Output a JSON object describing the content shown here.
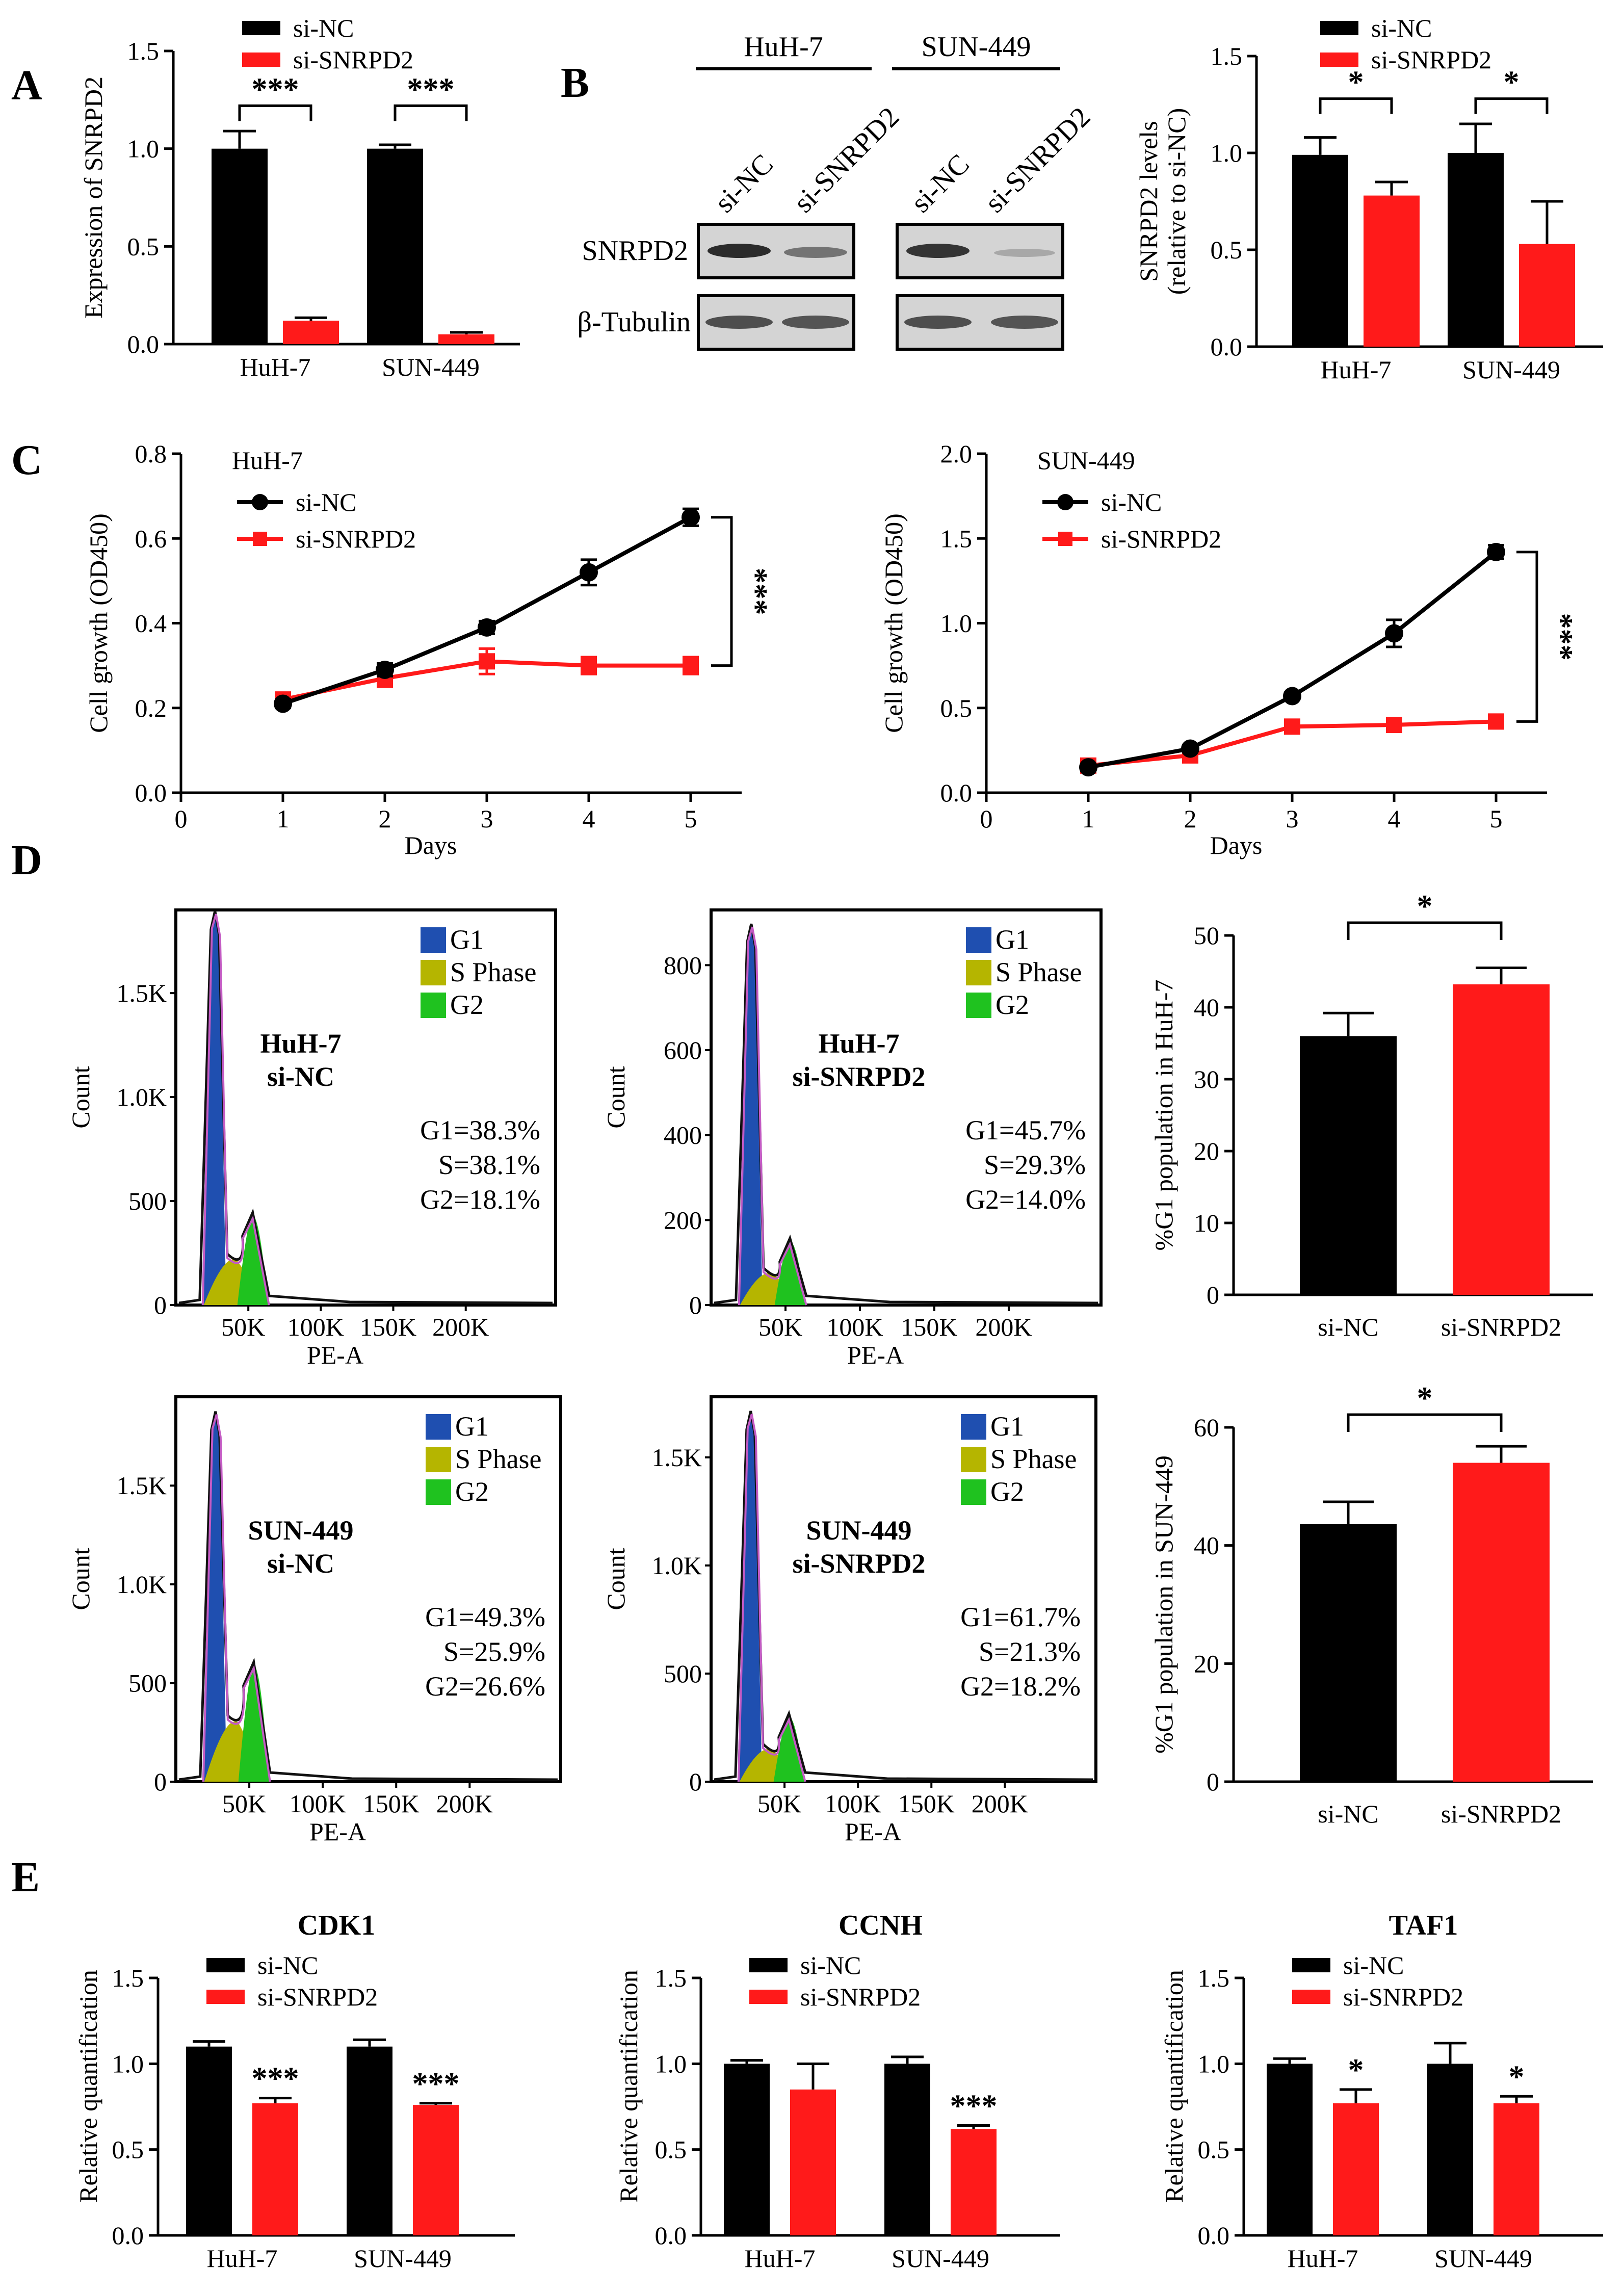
{
  "colors": {
    "nc": "#000000",
    "kd": "#ff1a1a",
    "g1": "#1f4fb0",
    "s": "#b5b500",
    "g2": "#1fc21f",
    "outline": "#c45bc4"
  },
  "panel_labels": {
    "A": "A",
    "B": "B",
    "C": "C",
    "D": "D",
    "E": "E"
  },
  "legend": {
    "nc": "si-NC",
    "kd": "si-SNRPD2"
  },
  "blot": {
    "cell_lines": [
      "HuH-7",
      "SUN-449"
    ],
    "lanes": [
      "si-NC",
      "si-SNRPD2"
    ],
    "rows": [
      "SNRPD2",
      "β-Tubulin"
    ]
  },
  "cell_cycle_legend": {
    "g1": "G1",
    "s": "S Phase",
    "g2": "G2"
  },
  "chart_data": [
    {
      "id": "A",
      "type": "bar",
      "categories": [
        "HuH-7",
        "SUN-449"
      ],
      "series": [
        {
          "name": "si-NC",
          "values": [
            1.0,
            1.0
          ],
          "errors": [
            0.09,
            0.02
          ]
        },
        {
          "name": "si-SNRPD2",
          "values": [
            0.12,
            0.05
          ],
          "errors": [
            0.015,
            0.01
          ]
        }
      ],
      "ylabel": "Expression of SNRPD2",
      "ylim": [
        0,
        1.5
      ],
      "yticks": [
        "0.0",
        "0.5",
        "1.0",
        "1.5"
      ],
      "annotations": [
        "***",
        "***"
      ]
    },
    {
      "id": "B",
      "type": "bar",
      "categories": [
        "HuH-7",
        "SUN-449"
      ],
      "series": [
        {
          "name": "si-NC",
          "values": [
            0.99,
            1.0
          ],
          "errors": [
            0.09,
            0.15
          ]
        },
        {
          "name": "si-SNRPD2",
          "values": [
            0.78,
            0.53
          ],
          "errors": [
            0.07,
            0.22
          ]
        }
      ],
      "ylabel": [
        "SNRPD2 levels",
        "(relative to si-NC)"
      ],
      "ylim": [
        0,
        1.5
      ],
      "yticks": [
        "0.0",
        "0.5",
        "1.0",
        "1.5"
      ],
      "annotations": [
        "*",
        "*"
      ]
    },
    {
      "id": "C1",
      "type": "line",
      "title": "HuH-7",
      "x": [
        1,
        2,
        3,
        4,
        5
      ],
      "series": [
        {
          "name": "si-NC",
          "values": [
            0.21,
            0.29,
            0.39,
            0.52,
            0.65
          ],
          "errors": [
            0.01,
            0.015,
            0.015,
            0.03,
            0.02
          ]
        },
        {
          "name": "si-SNRPD2",
          "values": [
            0.22,
            0.27,
            0.31,
            0.3,
            0.3
          ],
          "errors": [
            0.01,
            0.02,
            0.03,
            0.02,
            0.02
          ]
        }
      ],
      "xlabel": "Days",
      "ylabel": "Cell growth (OD450)",
      "xlim": [
        0,
        5.5
      ],
      "ylim": [
        0,
        0.8
      ],
      "xticks": [
        "0",
        "1",
        "2",
        "3",
        "4",
        "5"
      ],
      "yticks": [
        "0.0",
        "0.2",
        "0.4",
        "0.6",
        "0.8"
      ],
      "annotation": "***"
    },
    {
      "id": "C2",
      "type": "line",
      "title": "SUN-449",
      "x": [
        1,
        2,
        3,
        4,
        5
      ],
      "series": [
        {
          "name": "si-NC",
          "values": [
            0.15,
            0.26,
            0.57,
            0.94,
            1.42
          ],
          "errors": [
            0.02,
            0.02,
            0.02,
            0.08,
            0.04
          ]
        },
        {
          "name": "si-SNRPD2",
          "values": [
            0.16,
            0.22,
            0.39,
            0.4,
            0.42
          ],
          "errors": [
            0.02,
            0.02,
            0.03,
            0.03,
            0.04
          ]
        }
      ],
      "xlabel": "Days",
      "ylabel": "Cell growth (OD450)",
      "xlim": [
        0,
        5.5
      ],
      "ylim": [
        0,
        2.0
      ],
      "xticks": [
        "0",
        "1",
        "2",
        "3",
        "4",
        "5"
      ],
      "yticks": [
        "0.0",
        "0.5",
        "1.0",
        "1.5",
        "2.0"
      ],
      "annotation": "***"
    },
    {
      "id": "D1",
      "type": "area",
      "title": [
        "HuH-7",
        "si-NC"
      ],
      "stats": [
        "G1=38.3%",
        "S=38.1%",
        "G2=18.1%"
      ],
      "ymax": 1900,
      "g1_height": 1880,
      "g2_height": 430,
      "xlabel": "PE-A",
      "ylabel": "Count",
      "xticks": [
        "50K",
        "100K",
        "150K",
        "200K"
      ],
      "yticks": [
        "0",
        "500",
        "1.0K",
        "1.5K"
      ],
      "ytick_values": [
        0,
        500,
        1000,
        1500
      ]
    },
    {
      "id": "D2",
      "type": "area",
      "title": [
        "HuH-7",
        "si-SNRPD2"
      ],
      "stats": [
        "G1=45.7%",
        "S=29.3%",
        "G2=14.0%"
      ],
      "ymax": 930,
      "g1_height": 890,
      "g2_height": 150,
      "xlabel": "PE-A",
      "ylabel": "Count",
      "xticks": [
        "50K",
        "100K",
        "150K",
        "200K"
      ],
      "yticks": [
        "0",
        "200",
        "400",
        "600",
        "800"
      ],
      "ytick_values": [
        0,
        200,
        400,
        600,
        800
      ]
    },
    {
      "id": "D3",
      "type": "bar",
      "categories": [
        "si-NC",
        "si-SNRPD2"
      ],
      "series": [
        {
          "name": "%G1",
          "values": [
            36,
            43.2
          ],
          "errors": [
            3.2,
            2.3
          ]
        }
      ],
      "ylabel": "%G1 population in HuH-7",
      "ylim": [
        0,
        50
      ],
      "yticks": [
        "0",
        "10",
        "20",
        "30",
        "40",
        "50"
      ],
      "annotation": "*"
    },
    {
      "id": "D4",
      "type": "area",
      "title": [
        "SUN-449",
        "si-NC"
      ],
      "stats": [
        "G1=49.3%",
        "S=25.9%",
        "G2=26.6%"
      ],
      "ymax": 1950,
      "g1_height": 1860,
      "g2_height": 590,
      "xlabel": "PE-A",
      "ylabel": "Count",
      "xticks": [
        "50K",
        "100K",
        "150K",
        "200K"
      ],
      "yticks": [
        "0",
        "500",
        "1.0K",
        "1.5K"
      ],
      "ytick_values": [
        0,
        500,
        1000,
        1500
      ]
    },
    {
      "id": "D5",
      "type": "area",
      "title": [
        "SUN-449",
        "si-SNRPD2"
      ],
      "stats": [
        "G1=61.7%",
        "S=21.3%",
        "G2=18.2%"
      ],
      "ymax": 1780,
      "g1_height": 1700,
      "g2_height": 300,
      "xlabel": "PE-A",
      "ylabel": "Count",
      "xticks": [
        "50K",
        "100K",
        "150K",
        "200K"
      ],
      "yticks": [
        "0",
        "500",
        "1.0K",
        "1.5K"
      ],
      "ytick_values": [
        0,
        500,
        1000,
        1500
      ]
    },
    {
      "id": "D6",
      "type": "bar",
      "categories": [
        "si-NC",
        "si-SNRPD2"
      ],
      "series": [
        {
          "name": "%G1",
          "values": [
            43.6,
            54
          ],
          "errors": [
            3.8,
            2.8
          ]
        }
      ],
      "ylabel": "%G1 population in SUN-449",
      "ylim": [
        0,
        60
      ],
      "yticks": [
        "0",
        "20",
        "40",
        "60"
      ],
      "annotation": "*"
    },
    {
      "id": "E1",
      "type": "bar",
      "title": "CDK1",
      "categories": [
        "HuH-7",
        "SUN-449"
      ],
      "series": [
        {
          "name": "si-NC",
          "values": [
            1.1,
            1.1
          ],
          "errors": [
            0.03,
            0.04
          ]
        },
        {
          "name": "si-SNRPD2",
          "values": [
            0.77,
            0.76
          ],
          "errors": [
            0.03,
            0.01
          ]
        }
      ],
      "ylabel": "Relative quantification",
      "ylim": [
        0,
        1.5
      ],
      "yticks": [
        "0.0",
        "0.5",
        "1.0",
        "1.5"
      ],
      "annotations": [
        "***",
        "***"
      ]
    },
    {
      "id": "E2",
      "type": "bar",
      "title": "CCNH",
      "categories": [
        "HuH-7",
        "SUN-449"
      ],
      "series": [
        {
          "name": "si-NC",
          "values": [
            1.0,
            1.0
          ],
          "errors": [
            0.02,
            0.04
          ]
        },
        {
          "name": "si-SNRPD2",
          "values": [
            0.85,
            0.62
          ],
          "errors": [
            0.15,
            0.02
          ]
        }
      ],
      "ylabel": "Relative quantification",
      "ylim": [
        0,
        1.5
      ],
      "yticks": [
        "0.0",
        "0.5",
        "1.0",
        "1.5"
      ],
      "annotations": [
        "",
        "***"
      ]
    },
    {
      "id": "E3",
      "type": "bar",
      "title": "TAF1",
      "categories": [
        "HuH-7",
        "SUN-449"
      ],
      "series": [
        {
          "name": "si-NC",
          "values": [
            1.0,
            1.0
          ],
          "errors": [
            0.03,
            0.12
          ]
        },
        {
          "name": "si-SNRPD2",
          "values": [
            0.77,
            0.77
          ],
          "errors": [
            0.08,
            0.04
          ]
        }
      ],
      "ylabel": "Relative quantification",
      "ylim": [
        0,
        1.5
      ],
      "yticks": [
        "0.0",
        "0.5",
        "1.0",
        "1.5"
      ],
      "annotations": [
        "*",
        "*"
      ]
    }
  ]
}
